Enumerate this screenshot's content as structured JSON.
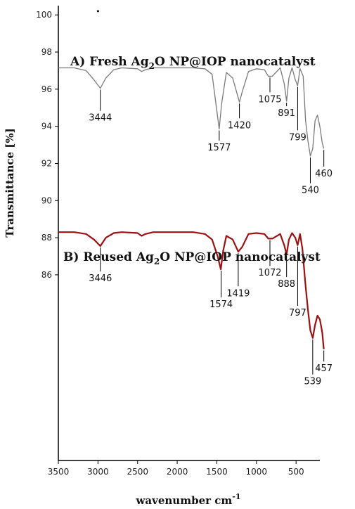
{
  "chart_data": {
    "type": "line",
    "xlabel": "wavenumber cm",
    "xlabel_sup": "-1",
    "ylabel": "Transmittance [%]",
    "xlim": [
      3500,
      200
    ],
    "ylim": [
      76,
      100.5
    ],
    "x_ticks": [
      3500,
      3000,
      2500,
      2000,
      1500,
      1000,
      500
    ],
    "y_ticks": [
      100,
      98,
      96,
      94,
      92,
      90,
      88,
      86
    ],
    "colors": {
      "series_a": "#7a7a7a",
      "series_b": "#9b1111",
      "axis": "#000000"
    },
    "series": [
      {
        "title_pre": "A) Fresh Ag",
        "title_sub": "2",
        "title_post": "O NP@IOP nanocatalyst",
        "points": [
          [
            3500,
            97.15
          ],
          [
            3300,
            97.15
          ],
          [
            3150,
            97.0
          ],
          [
            3050,
            96.5
          ],
          [
            2970,
            96.05
          ],
          [
            2900,
            96.6
          ],
          [
            2800,
            97.05
          ],
          [
            2700,
            97.15
          ],
          [
            2500,
            97.1
          ],
          [
            2450,
            96.95
          ],
          [
            2400,
            97.05
          ],
          [
            2300,
            97.15
          ],
          [
            1800,
            97.15
          ],
          [
            1650,
            97.1
          ],
          [
            1560,
            96.8
          ],
          [
            1490,
            94.5
          ],
          [
            1470,
            93.85
          ],
          [
            1440,
            95.2
          ],
          [
            1380,
            96.9
          ],
          [
            1300,
            96.6
          ],
          [
            1215,
            95.3
          ],
          [
            1180,
            95.85
          ],
          [
            1100,
            96.95
          ],
          [
            1000,
            97.1
          ],
          [
            900,
            97.05
          ],
          [
            850,
            96.7
          ],
          [
            800,
            96.7
          ],
          [
            700,
            97.15
          ],
          [
            650,
            96.3
          ],
          [
            620,
            95.35
          ],
          [
            590,
            96.6
          ],
          [
            550,
            97.15
          ],
          [
            510,
            96.5
          ],
          [
            480,
            96.2
          ],
          [
            450,
            97.1
          ],
          [
            410,
            96.7
          ],
          [
            380,
            94.3
          ],
          [
            350,
            93.2
          ],
          [
            320,
            92.4
          ],
          [
            290,
            92.8
          ],
          [
            260,
            94.3
          ],
          [
            230,
            94.6
          ],
          [
            200,
            94.0
          ],
          [
            170,
            93.1
          ],
          [
            150,
            92.8
          ]
        ],
        "annotations": [
          {
            "label": "3444",
            "x": 2970,
            "y": 96.05,
            "label_y": 94.3
          },
          {
            "label": "1577",
            "x": 1470,
            "y": 93.85,
            "label_y": 92.7
          },
          {
            "label": "1420",
            "x": 1215,
            "y": 95.3,
            "label_y": 93.9
          },
          {
            "label": "1075",
            "x": 830,
            "y": 96.7,
            "label_y": 95.3
          },
          {
            "label": "891",
            "x": 620,
            "y": 95.35,
            "label_y": 94.55
          },
          {
            "label": "799",
            "x": 480,
            "y": 96.2,
            "label_y": 93.25
          },
          {
            "label": "540",
            "x": 320,
            "y": 92.4,
            "label_y": 90.4
          },
          {
            "label": "460",
            "x": 150,
            "y": 92.8,
            "label_y": 91.3
          }
        ]
      },
      {
        "title_pre": "B) Reused Ag",
        "title_sub": "2",
        "title_post": "O NP@IOP nanocatalyst",
        "points": [
          [
            3500,
            88.3
          ],
          [
            3300,
            88.3
          ],
          [
            3150,
            88.2
          ],
          [
            3050,
            87.9
          ],
          [
            2970,
            87.55
          ],
          [
            2900,
            88.0
          ],
          [
            2800,
            88.25
          ],
          [
            2700,
            88.3
          ],
          [
            2500,
            88.25
          ],
          [
            2450,
            88.1
          ],
          [
            2400,
            88.2
          ],
          [
            2300,
            88.3
          ],
          [
            1800,
            88.3
          ],
          [
            1650,
            88.2
          ],
          [
            1560,
            87.9
          ],
          [
            1490,
            87.0
          ],
          [
            1450,
            86.3
          ],
          [
            1420,
            87.3
          ],
          [
            1380,
            88.1
          ],
          [
            1300,
            87.9
          ],
          [
            1230,
            87.25
          ],
          [
            1180,
            87.5
          ],
          [
            1100,
            88.2
          ],
          [
            1000,
            88.25
          ],
          [
            900,
            88.2
          ],
          [
            850,
            87.95
          ],
          [
            800,
            87.95
          ],
          [
            700,
            88.2
          ],
          [
            650,
            87.6
          ],
          [
            620,
            87.1
          ],
          [
            590,
            87.9
          ],
          [
            550,
            88.25
          ],
          [
            510,
            88.0
          ],
          [
            480,
            87.6
          ],
          [
            450,
            88.2
          ],
          [
            420,
            87.4
          ],
          [
            380,
            85.4
          ],
          [
            350,
            84.1
          ],
          [
            320,
            83.0
          ],
          [
            290,
            82.6
          ],
          [
            260,
            83.3
          ],
          [
            230,
            83.8
          ],
          [
            200,
            83.6
          ],
          [
            170,
            82.9
          ],
          [
            150,
            82.0
          ]
        ],
        "annotations": [
          {
            "label": "3446",
            "x": 2970,
            "y": 87.55,
            "label_y": 85.65
          },
          {
            "label": "1574",
            "x": 1445,
            "y": 86.3,
            "label_y": 84.25
          },
          {
            "label": "1419",
            "x": 1230,
            "y": 87.25,
            "label_y": 84.85
          },
          {
            "label": "1072",
            "x": 830,
            "y": 87.95,
            "label_y": 85.95
          },
          {
            "label": "888",
            "x": 620,
            "y": 87.1,
            "label_y": 85.35
          },
          {
            "label": "797",
            "x": 480,
            "y": 87.6,
            "label_y": 83.8
          },
          {
            "label": "539",
            "x": 290,
            "y": 82.6,
            "label_y": 80.1
          },
          {
            "label": "457",
            "x": 150,
            "y": 82.0,
            "label_y": 80.8
          }
        ]
      }
    ]
  }
}
